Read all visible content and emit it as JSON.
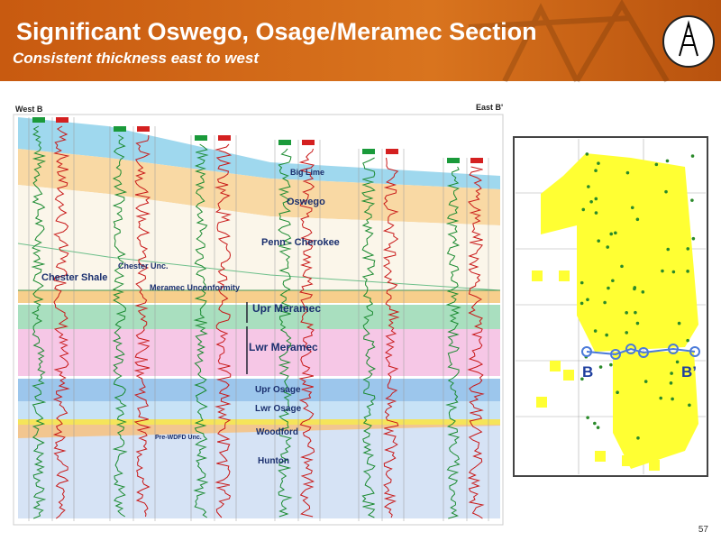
{
  "header": {
    "title": "Significant Oswego, Osage/Meramec Section",
    "subtitle": "Consistent thickness east to west"
  },
  "section": {
    "west_label": "West B",
    "east_label": "East B'",
    "labels": [
      "Big Lime",
      "Oswego",
      "Penn - Cherokee",
      "Chester Shale",
      "Chester Unc.",
      "Meramec Unconformity",
      "Upr Meramec",
      "Lwr Meramec",
      "Upr Osage",
      "Lwr Osage",
      "Woodford",
      "Pre-WDFD Unc.",
      "Hunton"
    ]
  },
  "map": {
    "start_label": "B",
    "end_label": "B’"
  },
  "footer": {
    "page": "57"
  }
}
